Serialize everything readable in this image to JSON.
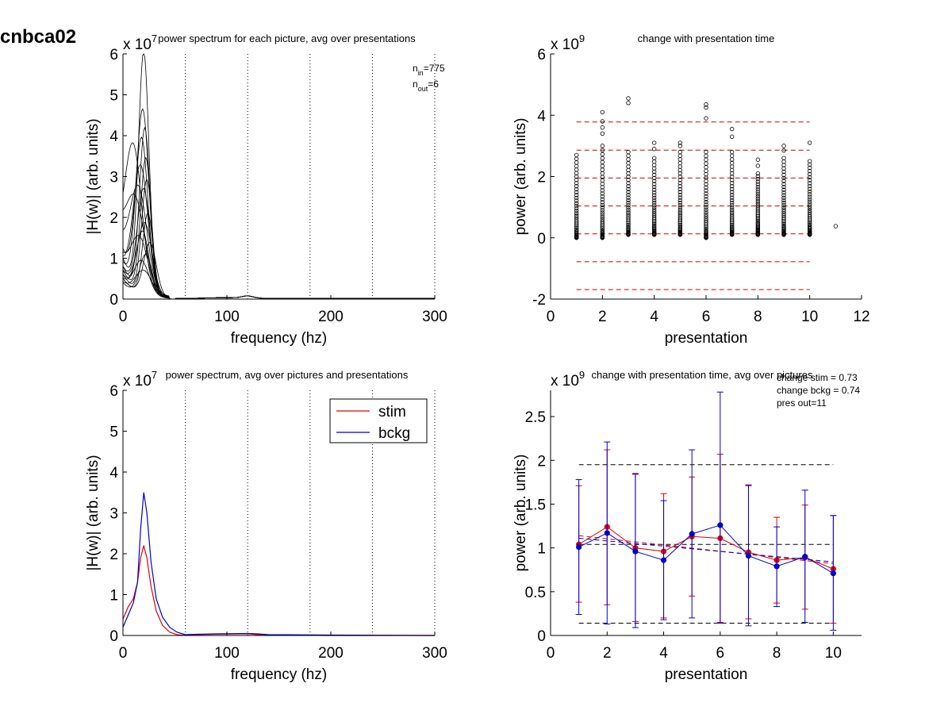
{
  "figure": {
    "label": "cnbca02"
  },
  "colors": {
    "trace": "#000000",
    "stim": "#e00000",
    "bckg": "#0000cc",
    "ref_red": "#cc0000",
    "ref_black": "#000000"
  },
  "chart_data": [
    {
      "type": "line",
      "title": "power spectrum for each picture, avg over presentations",
      "xlabel": "frequency (hz)",
      "ylabel": "|H(w)| (arb. units)",
      "y_exponent": "x 10",
      "y_exponent_power": "7",
      "xlim": [
        0,
        300
      ],
      "ylim": [
        0,
        6
      ],
      "xticks": [
        0,
        100,
        200,
        300
      ],
      "yticks": [
        0,
        1,
        2,
        3,
        4,
        5,
        6
      ],
      "vlines_dotted": [
        60,
        120,
        180,
        240,
        300
      ],
      "annotation": {
        "n_in_label": "n",
        "n_in_sub": "in",
        "n_in_value": "=775",
        "n_out_label": "n",
        "n_out_sub": "out",
        "n_out_value": "=6"
      },
      "series_description": "775 overlaid per-picture spectra, black",
      "traces": [
        {
          "peak_f": 20,
          "peak": 5.8,
          "width": 5,
          "shoulder": 1.0
        },
        {
          "peak_f": 19,
          "peak": 4.4,
          "width": 6,
          "shoulder": 0.9
        },
        {
          "peak_f": 21,
          "peak": 4.0,
          "width": 5,
          "shoulder": 0.8
        },
        {
          "peak_f": 18,
          "peak": 3.6,
          "width": 6,
          "shoulder": 1.2
        },
        {
          "peak_f": 22,
          "peak": 3.3,
          "width": 5,
          "shoulder": 0.7
        },
        {
          "peak_f": 10,
          "peak": 3.25,
          "width": 8,
          "shoulder": 1.1
        },
        {
          "peak_f": 17,
          "peak": 3.0,
          "width": 7,
          "shoulder": 0.9
        },
        {
          "peak_f": 23,
          "peak": 2.8,
          "width": 5,
          "shoulder": 0.6
        },
        {
          "peak_f": 20,
          "peak": 2.5,
          "width": 6,
          "shoulder": 0.8
        },
        {
          "peak_f": 15,
          "peak": 2.3,
          "width": 8,
          "shoulder": 1.3
        },
        {
          "peak_f": 24,
          "peak": 2.0,
          "width": 5,
          "shoulder": 0.5
        },
        {
          "peak_f": 12,
          "peak": 1.9,
          "width": 9,
          "shoulder": 1.4
        },
        {
          "peak_f": 21,
          "peak": 1.7,
          "width": 7,
          "shoulder": 0.7
        },
        {
          "peak_f": 19,
          "peak": 1.5,
          "width": 6,
          "shoulder": 0.6
        },
        {
          "peak_f": 26,
          "peak": 1.3,
          "width": 6,
          "shoulder": 0.5
        },
        {
          "peak_f": 16,
          "peak": 1.2,
          "width": 8,
          "shoulder": 1.0
        },
        {
          "peak_f": 22,
          "peak": 1.0,
          "width": 6,
          "shoulder": 0.4
        },
        {
          "peak_f": 18,
          "peak": 0.8,
          "width": 7,
          "shoulder": 0.5
        },
        {
          "peak_f": 20,
          "peak": 0.6,
          "width": 8,
          "shoulder": 0.4
        }
      ]
    },
    {
      "type": "scatter",
      "title": "change with presentation time",
      "xlabel": "presentation",
      "ylabel": "power (arb. units)",
      "y_exponent": "x 10",
      "y_exponent_power": "9",
      "xlim": [
        0,
        12
      ],
      "ylim": [
        -2,
        6
      ],
      "xticks": [
        0,
        2,
        4,
        6,
        8,
        10,
        12
      ],
      "yticks": [
        -2,
        0,
        2,
        4,
        6
      ],
      "hlines_red_dashed": [
        3.78,
        2.86,
        1.95,
        1.04,
        0.13,
        -0.78,
        -1.69
      ],
      "hline_xrange": [
        1,
        10
      ],
      "columns": [
        {
          "x": 1,
          "min": 0.0,
          "max": 2.7,
          "outliers": []
        },
        {
          "x": 2,
          "min": 0.0,
          "max": 3.0,
          "outliers": [
            3.4,
            3.6,
            3.8,
            4.1
          ]
        },
        {
          "x": 3,
          "min": 0.1,
          "max": 2.8,
          "outliers": [
            4.4,
            4.55
          ]
        },
        {
          "x": 4,
          "min": 0.1,
          "max": 2.6,
          "outliers": [
            2.9,
            3.1
          ]
        },
        {
          "x": 5,
          "min": 0.1,
          "max": 2.8,
          "outliers": [
            3.0,
            3.1
          ]
        },
        {
          "x": 6,
          "min": 0.0,
          "max": 2.8,
          "outliers": [
            3.9,
            4.25,
            4.35
          ]
        },
        {
          "x": 7,
          "min": 0.1,
          "max": 2.8,
          "outliers": [
            3.3,
            3.55
          ]
        },
        {
          "x": 8,
          "min": 0.1,
          "max": 2.1,
          "outliers": [
            2.35,
            2.55
          ]
        },
        {
          "x": 9,
          "min": 0.1,
          "max": 2.6,
          "outliers": [
            2.85,
            3.0
          ]
        },
        {
          "x": 10,
          "min": 0.1,
          "max": 2.5,
          "outliers": [
            3.1
          ]
        },
        {
          "x": 11,
          "min": 0.38,
          "max": 0.38,
          "outliers": []
        }
      ]
    },
    {
      "type": "line",
      "title": "power spectrum, avg over pictures and presentations",
      "xlabel": "frequency (hz)",
      "ylabel": "|H(w)| (arb. units)",
      "y_exponent": "x 10",
      "y_exponent_power": "7",
      "xlim": [
        0,
        300
      ],
      "ylim": [
        0,
        6
      ],
      "xticks": [
        0,
        100,
        200,
        300
      ],
      "yticks": [
        0,
        1,
        2,
        3,
        4,
        5,
        6
      ],
      "vlines_dotted": [
        60,
        120,
        180,
        240,
        300
      ],
      "legend_placement": "top-right",
      "series": [
        {
          "name": "stim",
          "x": [
            0,
            5,
            10,
            14,
            17,
            20,
            23,
            27,
            32,
            38,
            45,
            52,
            60,
            70,
            90,
            120,
            130,
            140,
            200,
            300
          ],
          "values": [
            0.4,
            0.7,
            0.9,
            1.3,
            1.9,
            2.2,
            1.9,
            1.2,
            0.6,
            0.25,
            0.08,
            0.02,
            0.0,
            0.02,
            0.03,
            0.04,
            0.02,
            0.01,
            0.0,
            0.0
          ]
        },
        {
          "name": "bckg",
          "x": [
            0,
            5,
            10,
            14,
            17,
            20,
            23,
            27,
            32,
            38,
            45,
            52,
            60,
            70,
            90,
            120,
            130,
            140,
            200,
            300
          ],
          "values": [
            0.2,
            0.5,
            0.8,
            1.3,
            2.6,
            3.5,
            3.0,
            1.8,
            0.9,
            0.45,
            0.2,
            0.08,
            0.02,
            0.03,
            0.04,
            0.05,
            0.04,
            0.02,
            0.01,
            0.0
          ]
        }
      ]
    },
    {
      "type": "line",
      "title": "change with presentation time, avg over pictures",
      "xlabel": "presentation",
      "ylabel": "power (arb. units)",
      "y_exponent": "x 10",
      "y_exponent_power": "9",
      "xlim": [
        0,
        11
      ],
      "ylim": [
        0,
        2.8
      ],
      "xticks": [
        0,
        2,
        4,
        6,
        8,
        10
      ],
      "yticks": [
        0,
        0.5,
        1,
        1.5,
        2,
        2.5
      ],
      "annotations": [
        "change stim = 0.73",
        "change bckg = 0.74",
        "pres out=11"
      ],
      "hlines_black_dashed": [
        1.95,
        1.04,
        0.14
      ],
      "hline_xrange": [
        1,
        10
      ],
      "x": [
        1,
        2,
        3,
        4,
        5,
        6,
        7,
        8,
        9,
        10
      ],
      "series": [
        {
          "name": "stim",
          "values": [
            1.04,
            1.24,
            1.0,
            0.96,
            1.13,
            1.11,
            0.95,
            0.86,
            0.89,
            0.76
          ],
          "err_low": [
            0.38,
            0.35,
            0.16,
            0.2,
            0.45,
            0.15,
            0.19,
            0.37,
            0.3,
            0.14
          ],
          "err_high": [
            1.71,
            2.12,
            1.84,
            1.62,
            1.81,
            2.07,
            1.71,
            1.35,
            1.49,
            1.37
          ],
          "trend": [
            1.14,
            0.82
          ]
        },
        {
          "name": "bckg",
          "values": [
            1.01,
            1.17,
            0.96,
            0.86,
            1.16,
            1.26,
            0.91,
            0.79,
            0.9,
            0.71
          ],
          "err_low": [
            0.24,
            0.13,
            0.09,
            0.18,
            0.2,
            0.14,
            0.11,
            0.33,
            0.15,
            0.06
          ],
          "err_high": [
            1.78,
            2.21,
            1.85,
            1.54,
            2.12,
            2.78,
            1.72,
            1.24,
            1.66,
            1.37
          ],
          "trend": [
            1.11,
            0.84
          ]
        }
      ]
    }
  ]
}
